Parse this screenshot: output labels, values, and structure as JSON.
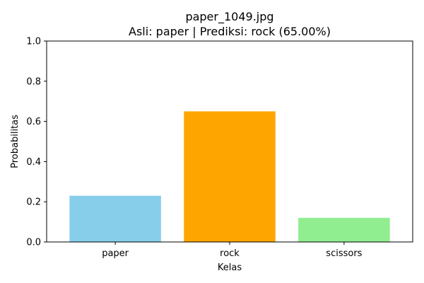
{
  "chart_data": {
    "type": "bar",
    "title_line1": "paper_1049.jpg",
    "title_line2": "Asli: paper | Prediksi: rock (65.00%)",
    "xlabel": "Kelas",
    "ylabel": "Probabilitas",
    "categories": [
      "paper",
      "rock",
      "scissors"
    ],
    "values": [
      0.23,
      0.65,
      0.12
    ],
    "colors": [
      "#87ceeb",
      "#ffa500",
      "#90ee90"
    ],
    "ylim": [
      0,
      1.0
    ],
    "yticks": [
      0.0,
      0.2,
      0.4,
      0.6,
      0.8,
      1.0
    ],
    "ytick_labels": [
      "0.0",
      "0.2",
      "0.4",
      "0.6",
      "0.8",
      "1.0"
    ],
    "grid": false,
    "legend": "none"
  }
}
